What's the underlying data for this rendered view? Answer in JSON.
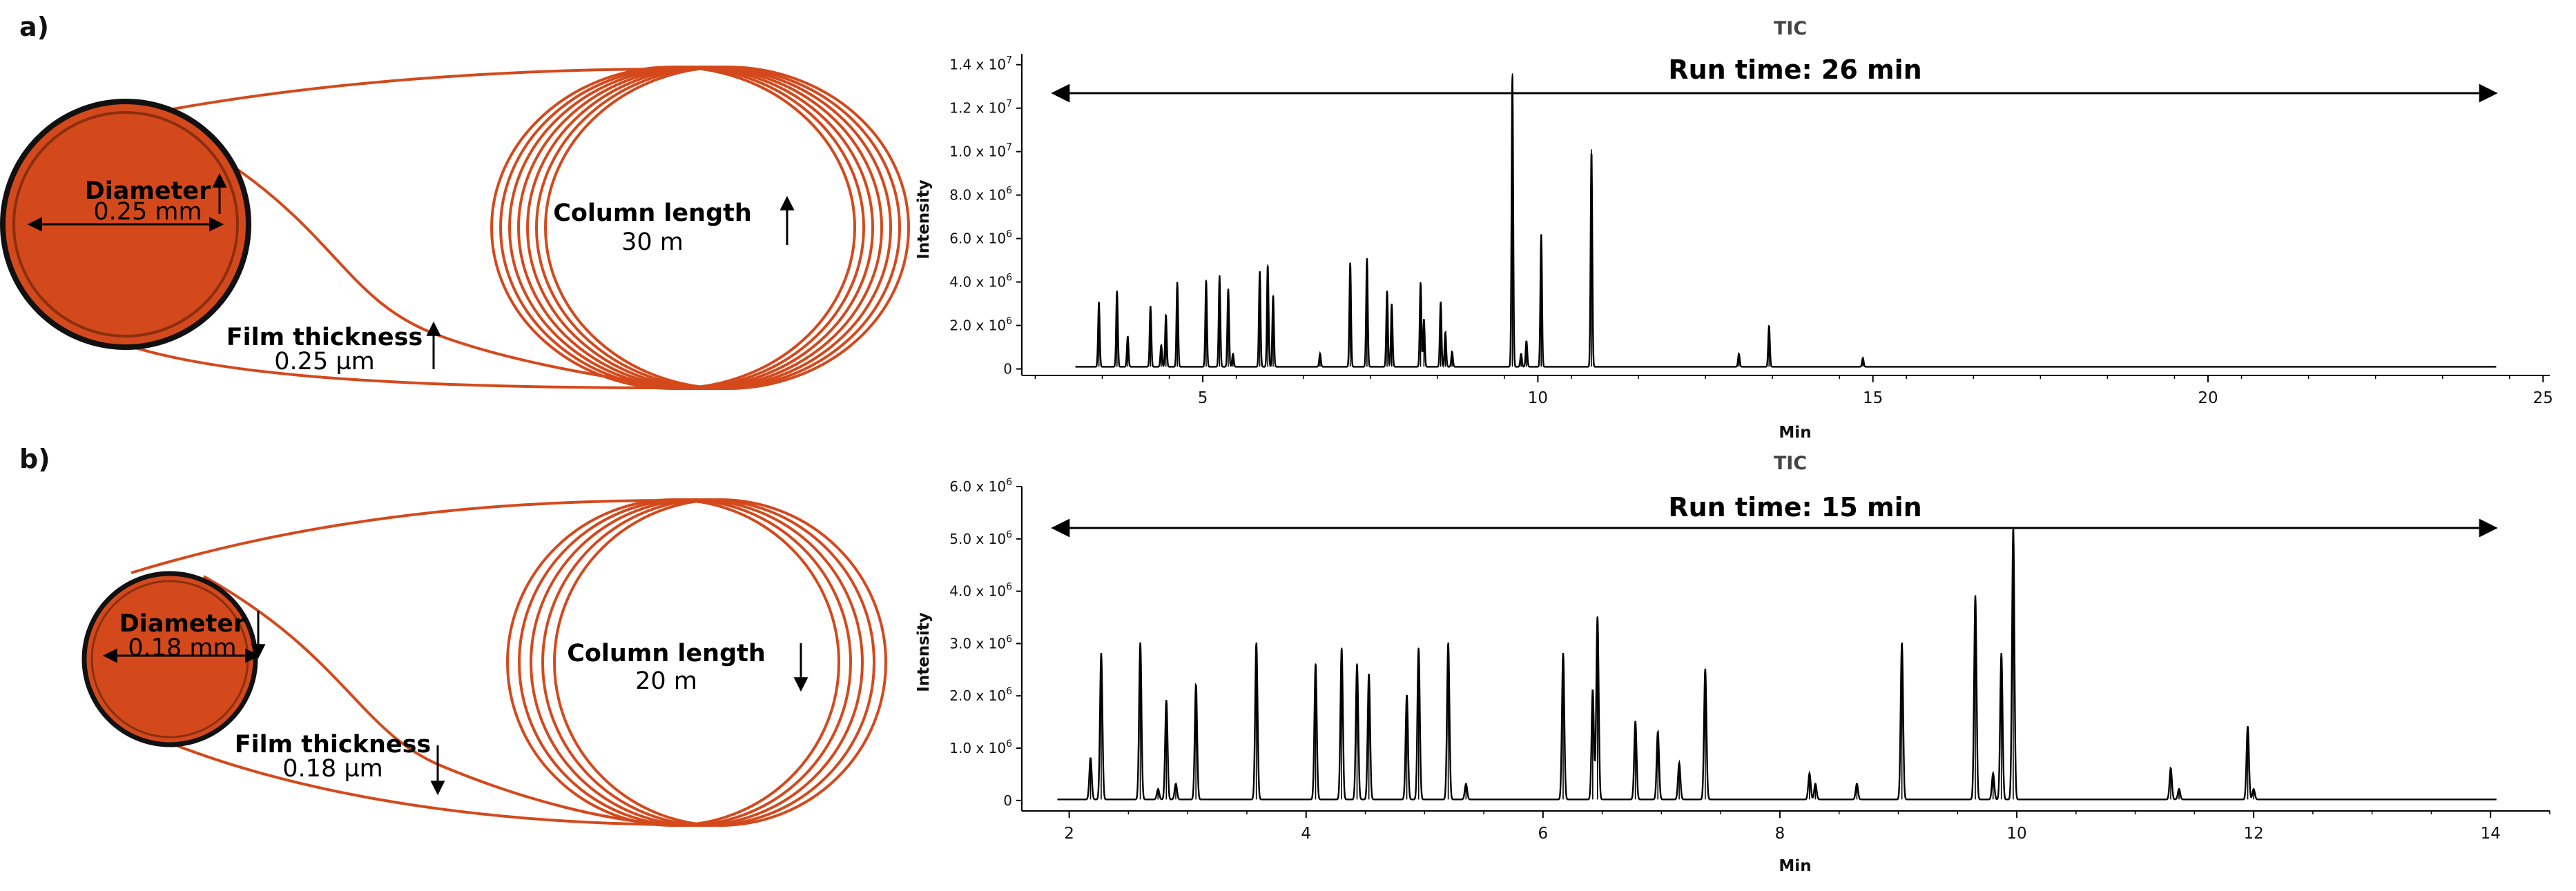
{
  "panels": {
    "a": {
      "label": "a)",
      "diagram": {
        "diameter_title": "Diameter",
        "diameter_value": "0.25 mm",
        "film_title": "Film thickness",
        "film_value": "0.25 µm",
        "length_title": "Column length",
        "length_value": "30 m",
        "length_arrow": "up"
      }
    },
    "b": {
      "label": "b)",
      "diagram": {
        "diameter_title": "Diameter",
        "diameter_value": "0.18 mm",
        "film_title": "Film thickness",
        "film_value": "0.18 µm",
        "length_title": "Column length",
        "length_value": "20 m",
        "length_arrow": "down"
      }
    }
  },
  "colors": {
    "column": "#d4491c",
    "column_dark": "#9e3a14",
    "trace": "#000000"
  },
  "chart_data": [
    {
      "type": "line",
      "title": "TIC",
      "annotation": "Run time: 26 min",
      "xlabel": "Min",
      "ylabel": "Intensity",
      "xlim": [
        2.3,
        25.1
      ],
      "xticks": [
        5,
        10,
        15,
        20,
        25
      ],
      "ylim": [
        -300000,
        14500000
      ],
      "yticks": [
        0,
        2000000,
        4000000,
        6000000,
        8000000,
        10000000,
        12000000,
        14000000
      ],
      "ytick_mantissa": [
        "0",
        "2.0 x 10",
        "4.0 x 10",
        "6.0 x 10",
        "8.0 x 10",
        "1.0 x 10",
        "1.2 x 10",
        "1.4 x 10"
      ],
      "ytick_exponent": [
        "",
        "6",
        "6",
        "6",
        "6",
        "7",
        "7",
        "7"
      ],
      "trace_range": [
        3.1,
        24.3
      ],
      "baseline": 100000,
      "peaks": [
        [
          3.45,
          3000000
        ],
        [
          3.72,
          3500000
        ],
        [
          3.88,
          1400000
        ],
        [
          4.22,
          2800000
        ],
        [
          4.38,
          1000000
        ],
        [
          4.45,
          2400000
        ],
        [
          4.62,
          3900000
        ],
        [
          5.05,
          4000000
        ],
        [
          5.25,
          4200000
        ],
        [
          5.38,
          3600000
        ],
        [
          5.45,
          600000
        ],
        [
          5.85,
          4400000
        ],
        [
          5.97,
          4700000
        ],
        [
          6.05,
          3300000
        ],
        [
          6.75,
          600000
        ],
        [
          7.2,
          4800000
        ],
        [
          7.45,
          5000000
        ],
        [
          7.75,
          3500000
        ],
        [
          7.82,
          2900000
        ],
        [
          8.25,
          3900000
        ],
        [
          8.3,
          2200000
        ],
        [
          8.55,
          3000000
        ],
        [
          8.62,
          1600000
        ],
        [
          8.72,
          700000
        ],
        [
          9.62,
          13500000
        ],
        [
          9.75,
          600000
        ],
        [
          9.83,
          1200000
        ],
        [
          10.05,
          6100000
        ],
        [
          10.8,
          10000000
        ],
        [
          13.0,
          600000
        ],
        [
          13.45,
          1900000
        ],
        [
          14.85,
          400000
        ]
      ]
    },
    {
      "type": "line",
      "title": "TIC",
      "annotation": "Run time: 15 min",
      "xlabel": "Min",
      "ylabel": "Intensity",
      "xlim": [
        1.6,
        14.5
      ],
      "xticks": [
        2,
        4,
        6,
        8,
        10,
        12,
        14
      ],
      "ylim": [
        -200000,
        6000000
      ],
      "yticks": [
        0,
        1000000,
        2000000,
        3000000,
        4000000,
        5000000,
        6000000
      ],
      "ytick_mantissa": [
        "0",
        "1.0 x 10",
        "2.0 x 10",
        "3.0 x 10",
        "4.0 x 10",
        "5.0 x 10",
        "6.0 x 10"
      ],
      "ytick_exponent": [
        "",
        "6",
        "6",
        "6",
        "6",
        "6",
        "6"
      ],
      "trace_range": [
        1.9,
        14.05
      ],
      "baseline": 20000,
      "peaks": [
        [
          2.18,
          800000
        ],
        [
          2.27,
          2800000
        ],
        [
          2.6,
          3000000
        ],
        [
          2.75,
          200000
        ],
        [
          2.82,
          1900000
        ],
        [
          2.9,
          300000
        ],
        [
          3.07,
          2200000
        ],
        [
          3.58,
          3000000
        ],
        [
          4.08,
          2600000
        ],
        [
          4.3,
          2900000
        ],
        [
          4.43,
          2600000
        ],
        [
          4.53,
          2400000
        ],
        [
          4.85,
          2000000
        ],
        [
          4.95,
          2900000
        ],
        [
          5.2,
          3000000
        ],
        [
          5.35,
          300000
        ],
        [
          6.17,
          2800000
        ],
        [
          6.42,
          2100000
        ],
        [
          6.46,
          3500000
        ],
        [
          6.78,
          1500000
        ],
        [
          6.97,
          1300000
        ],
        [
          7.15,
          700000
        ],
        [
          7.37,
          2500000
        ],
        [
          8.25,
          500000
        ],
        [
          8.3,
          300000
        ],
        [
          8.65,
          300000
        ],
        [
          9.03,
          3000000
        ],
        [
          9.65,
          3900000
        ],
        [
          9.8,
          500000
        ],
        [
          9.87,
          2800000
        ],
        [
          9.97,
          5200000
        ],
        [
          11.3,
          600000
        ],
        [
          11.37,
          200000
        ],
        [
          11.95,
          1400000
        ],
        [
          12.0,
          200000
        ]
      ]
    }
  ]
}
